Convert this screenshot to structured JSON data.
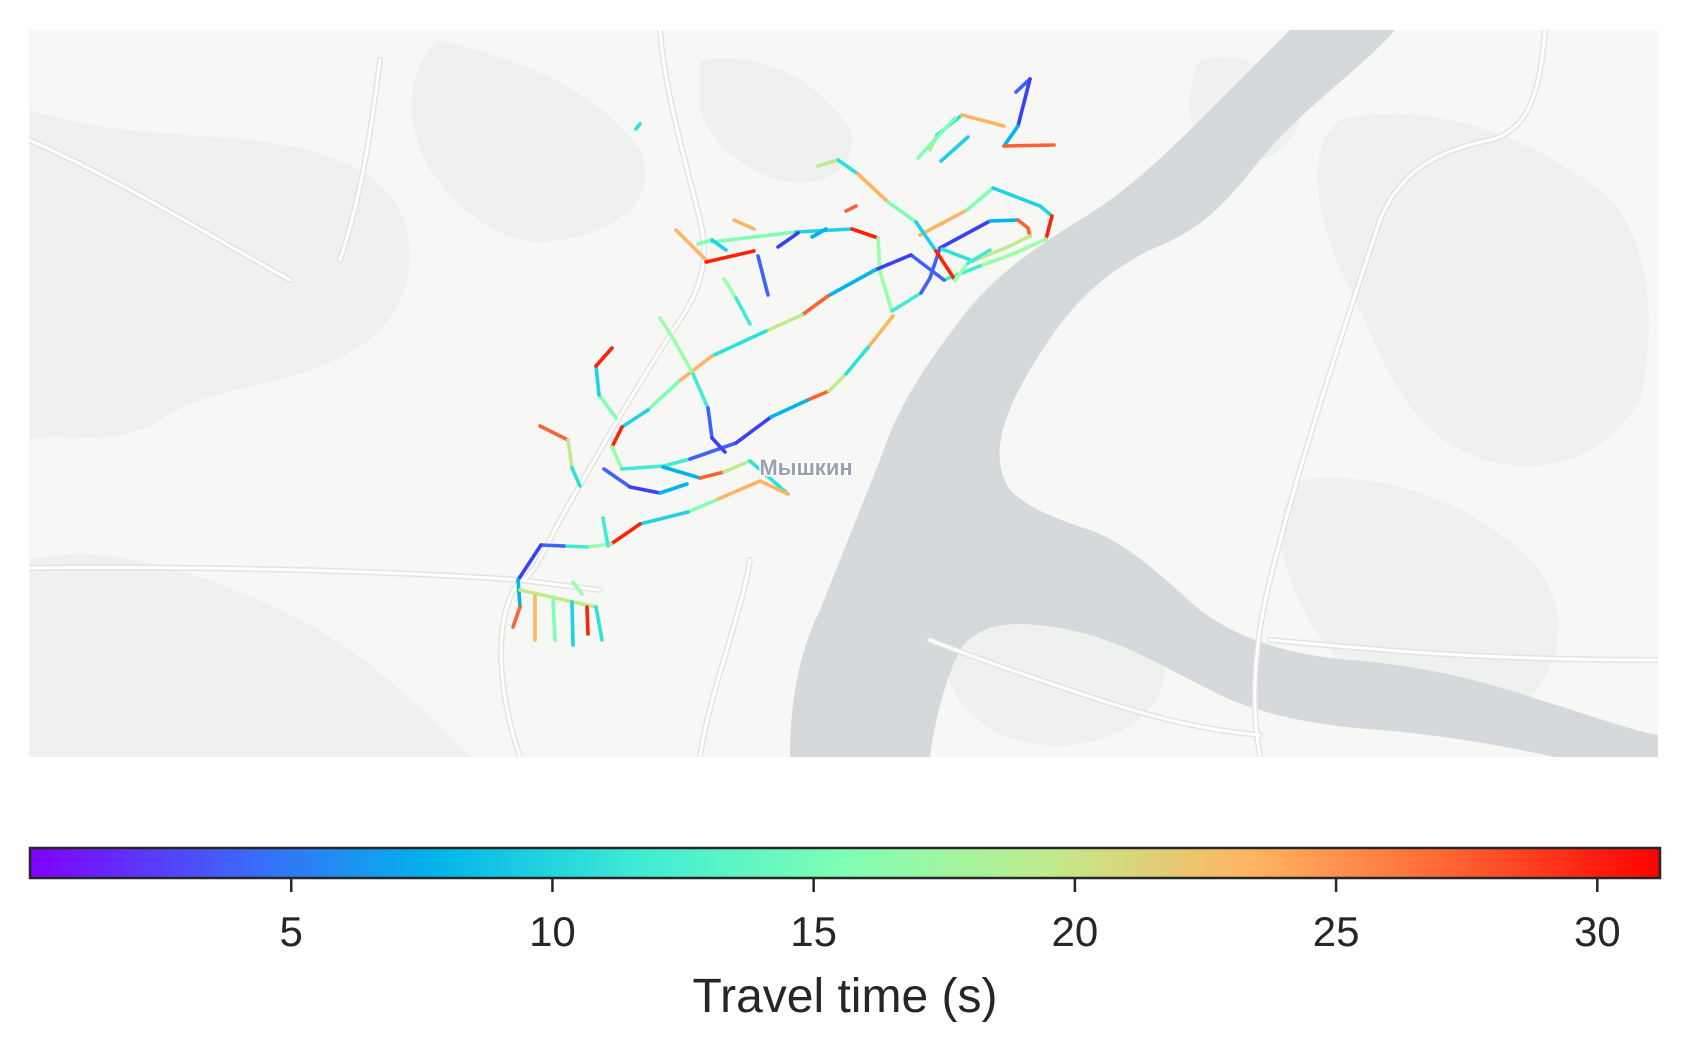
{
  "map": {
    "place_label": "Мышкин",
    "colors": {
      "background": "#f7f7f6",
      "forest": "#eff1ee",
      "water": "#d5d9dc",
      "road": "#ffffff",
      "road_casing": "#e4e4e2",
      "label": "#9aa1ab"
    },
    "edges": [
      [
        [
          636,
          129
        ],
        [
          640,
          124
        ]
      ],
      [
        [
          676,
          230
        ],
        [
          708,
          262
        ]
      ],
      [
        [
          712,
          242
        ],
        [
          796,
          232
        ]
      ],
      [
        [
          796,
          232
        ],
        [
          852,
          229
        ]
      ],
      [
        [
          852,
          229
        ],
        [
          878,
          238
        ]
      ],
      [
        [
          878,
          238
        ],
        [
          880,
          272
        ],
        [
          892,
          311
        ]
      ],
      [
        [
          892,
          311
        ],
        [
          921,
          293
        ]
      ],
      [
        [
          921,
          293
        ],
        [
          930,
          278
        ],
        [
          940,
          248
        ]
      ],
      [
        [
          940,
          248
        ],
        [
          990,
          221
        ]
      ],
      [
        [
          990,
          221
        ],
        [
          1018,
          220
        ]
      ],
      [
        [
          1018,
          220
        ],
        [
          1028,
          228
        ],
        [
          1030,
          236
        ]
      ],
      [
        [
          1030,
          236
        ],
        [
          1010,
          246
        ],
        [
          973,
          261
        ]
      ],
      [
        [
          973,
          261
        ],
        [
          942,
          249
        ]
      ],
      [
        [
          920,
          235
        ],
        [
          967,
          210
        ]
      ],
      [
        [
          967,
          210
        ],
        [
          993,
          188
        ]
      ],
      [
        [
          993,
          188
        ],
        [
          1040,
          206
        ],
        [
          1052,
          216
        ]
      ],
      [
        [
          1052,
          216
        ],
        [
          1046,
          239
        ]
      ],
      [
        [
          1046,
          239
        ],
        [
          1013,
          254
        ],
        [
          980,
          266
        ]
      ],
      [
        [
          980,
          266
        ],
        [
          944,
          280
        ]
      ],
      [
        [
          944,
          280
        ],
        [
          911,
          255
        ]
      ],
      [
        [
          911,
          255
        ],
        [
          875,
          270
        ]
      ],
      [
        [
          875,
          270
        ],
        [
          828,
          296
        ]
      ],
      [
        [
          828,
          296
        ],
        [
          802,
          315
        ]
      ],
      [
        [
          802,
          315
        ],
        [
          766,
          331
        ]
      ],
      [
        [
          766,
          331
        ],
        [
          712,
          356
        ]
      ],
      [
        [
          712,
          356
        ],
        [
          678,
          382
        ]
      ],
      [
        [
          678,
          382
        ],
        [
          648,
          410
        ]
      ],
      [
        [
          648,
          410
        ],
        [
          622,
          427
        ]
      ],
      [
        [
          622,
          427
        ],
        [
          612,
          447
        ]
      ],
      [
        [
          612,
          447
        ],
        [
          622,
          469
        ]
      ],
      [
        [
          622,
          469
        ],
        [
          664,
          466
        ],
        [
          690,
          459
        ]
      ],
      [
        [
          690,
          459
        ],
        [
          736,
          443
        ]
      ],
      [
        [
          736,
          443
        ],
        [
          771,
          417
        ]
      ],
      [
        [
          771,
          417
        ],
        [
          810,
          399
        ]
      ],
      [
        [
          810,
          399
        ],
        [
          829,
          391
        ]
      ],
      [
        [
          829,
          391
        ],
        [
          846,
          374
        ]
      ],
      [
        [
          846,
          374
        ],
        [
          870,
          345
        ]
      ],
      [
        [
          870,
          345
        ],
        [
          893,
          316
        ]
      ],
      [
        [
          616,
          418
        ],
        [
          599,
          395
        ]
      ],
      [
        [
          599,
          395
        ],
        [
          596,
          366
        ]
      ],
      [
        [
          596,
          366
        ],
        [
          612,
          348
        ]
      ],
      [
        [
          660,
          318
        ],
        [
          674,
          340
        ],
        [
          693,
          374
        ]
      ],
      [
        [
          693,
          374
        ],
        [
          708,
          408
        ]
      ],
      [
        [
          708,
          408
        ],
        [
          712,
          438
        ]
      ],
      [
        [
          712,
          438
        ],
        [
          725,
          452
        ]
      ],
      [
        [
          663,
          467
        ],
        [
          700,
          478
        ]
      ],
      [
        [
          700,
          478
        ],
        [
          724,
          472
        ]
      ],
      [
        [
          724,
          472
        ],
        [
          750,
          461
        ]
      ],
      [
        [
          750,
          461
        ],
        [
          788,
          494
        ]
      ],
      [
        [
          788,
          494
        ],
        [
          760,
          481
        ],
        [
          716,
          500
        ]
      ],
      [
        [
          716,
          500
        ],
        [
          688,
          512
        ]
      ],
      [
        [
          688,
          512
        ],
        [
          640,
          524
        ]
      ],
      [
        [
          640,
          524
        ],
        [
          611,
          544
        ]
      ],
      [
        [
          611,
          544
        ],
        [
          587,
          547
        ]
      ],
      [
        [
          587,
          547
        ],
        [
          564,
          546
        ]
      ],
      [
        [
          564,
          546
        ],
        [
          541,
          545
        ]
      ],
      [
        [
          541,
          545
        ],
        [
          518,
          580
        ]
      ],
      [
        [
          518,
          580
        ],
        [
          520,
          607
        ]
      ],
      [
        [
          520,
          607
        ],
        [
          513,
          627
        ]
      ],
      [
        [
          520,
          590
        ],
        [
          596,
          607
        ]
      ],
      [
        [
          596,
          607
        ],
        [
          602,
          640
        ]
      ],
      [
        [
          535,
          596
        ],
        [
          535,
          640
        ]
      ],
      [
        [
          553,
          600
        ],
        [
          555,
          640
        ]
      ],
      [
        [
          572,
          602
        ],
        [
          573,
          645
        ]
      ],
      [
        [
          587,
          607
        ],
        [
          588,
          634
        ]
      ],
      [
        [
          573,
          582
        ],
        [
          582,
          594
        ]
      ],
      [
        [
          603,
          518
        ],
        [
          608,
          546
        ]
      ],
      [
        [
          604,
          469
        ],
        [
          630,
          487
        ]
      ],
      [
        [
          630,
          487
        ],
        [
          660,
          493
        ]
      ],
      [
        [
          660,
          493
        ],
        [
          687,
          484
        ]
      ],
      [
        [
          540,
          426
        ],
        [
          568,
          440
        ]
      ],
      [
        [
          568,
          440
        ],
        [
          572,
          468
        ]
      ],
      [
        [
          572,
          468
        ],
        [
          580,
          486
        ]
      ],
      [
        [
          734,
          220
        ],
        [
          754,
          229
        ]
      ],
      [
        [
          698,
          244
        ],
        [
          712,
          240
        ]
      ],
      [
        [
          712,
          240
        ],
        [
          726,
          250
        ]
      ],
      [
        [
          706,
          262
        ],
        [
          754,
          251
        ]
      ],
      [
        [
          724,
          279
        ],
        [
          736,
          298
        ]
      ],
      [
        [
          736,
          298
        ],
        [
          750,
          324
        ]
      ],
      [
        [
          758,
          256
        ],
        [
          768,
          295
        ]
      ],
      [
        [
          778,
          247
        ],
        [
          798,
          233
        ]
      ],
      [
        [
          812,
          237
        ],
        [
          826,
          229
        ]
      ],
      [
        [
          846,
          211
        ],
        [
          856,
          206
        ]
      ],
      [
        [
          818,
          166
        ],
        [
          838,
          160
        ]
      ],
      [
        [
          838,
          160
        ],
        [
          858,
          174
        ]
      ],
      [
        [
          858,
          174
        ],
        [
          888,
          202
        ]
      ],
      [
        [
          888,
          202
        ],
        [
          916,
          222
        ]
      ],
      [
        [
          916,
          222
        ],
        [
          936,
          251
        ]
      ],
      [
        [
          936,
          251
        ],
        [
          955,
          280
        ]
      ],
      [
        [
          955,
          280
        ],
        [
          968,
          263
        ]
      ],
      [
        [
          968,
          263
        ],
        [
          990,
          250
        ]
      ],
      [
        [
          1016,
          92
        ],
        [
          1030,
          79
        ]
      ],
      [
        [
          1030,
          79
        ],
        [
          1018,
          126
        ]
      ],
      [
        [
          1018,
          126
        ],
        [
          1004,
          146
        ]
      ],
      [
        [
          1004,
          146
        ],
        [
          1054,
          145
        ]
      ],
      [
        [
          930,
          150
        ],
        [
          937,
          135
        ]
      ],
      [
        [
          937,
          135
        ],
        [
          962,
          115
        ]
      ],
      [
        [
          962,
          115
        ],
        [
          1004,
          126
        ]
      ],
      [
        [
          955,
          118
        ],
        [
          918,
          158
        ]
      ],
      [
        [
          941,
          161
        ],
        [
          968,
          137
        ]
      ]
    ]
  },
  "colorbar": {
    "label": "Travel time (s)",
    "min": 0,
    "max": 31.2,
    "ticks": [
      "5",
      "10",
      "15",
      "20",
      "25",
      "30"
    ],
    "tick_values": [
      5,
      10,
      15,
      20,
      25,
      30
    ],
    "colormap": "rainbow"
  }
}
